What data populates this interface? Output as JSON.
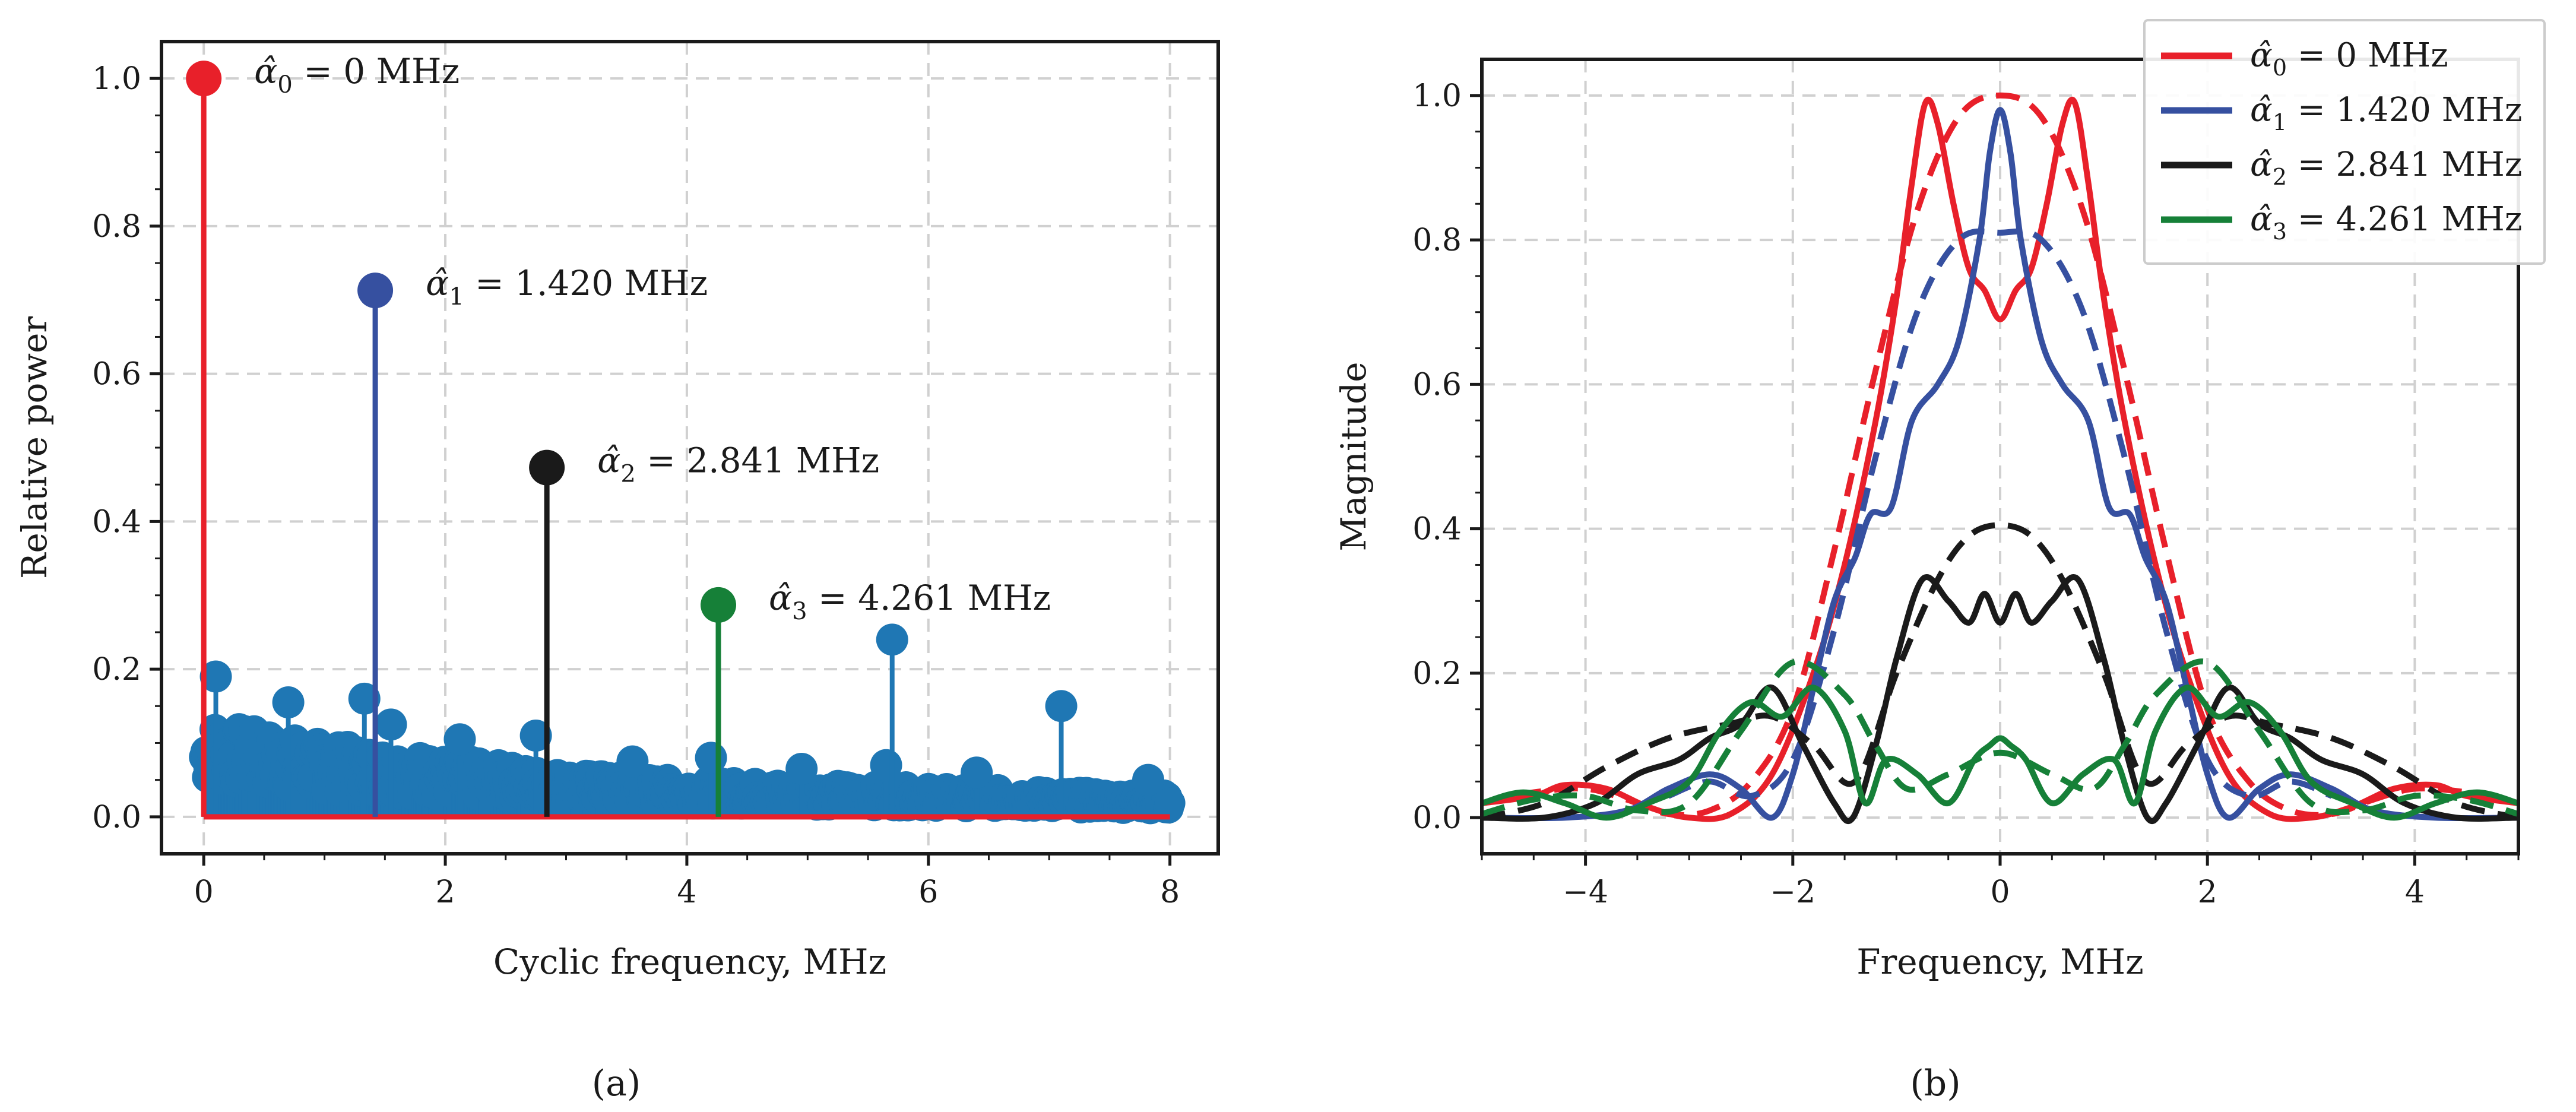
{
  "chart_data": [
    {
      "type": "scatter",
      "subtype": "stem",
      "panel_label": "(a)",
      "xlabel": "Cyclic frequency, MHz",
      "ylabel": "Relative power",
      "xlim": [
        -0.35,
        8.4
      ],
      "ylim": [
        -0.05,
        1.05
      ],
      "xticks": [
        0,
        2,
        4,
        6,
        8
      ],
      "yticks": [
        0.0,
        0.2,
        0.4,
        0.6,
        0.8,
        1.0
      ],
      "xtick_labels": [
        "0",
        "2",
        "4",
        "6",
        "8"
      ],
      "ytick_labels": [
        "0.0",
        "0.2",
        "0.4",
        "0.6",
        "0.8",
        "1.0"
      ],
      "grid": true,
      "baseline": {
        "y": 0.0,
        "x_range": [
          0,
          8
        ],
        "color": "#e8202a"
      },
      "background_stems": {
        "color": "#1f77b4",
        "x": [
          0.1,
          0.7,
          1.33,
          1.55,
          2.12,
          2.75,
          3.55,
          4.2,
          4.95,
          5.65,
          5.7,
          6.4,
          7.1,
          7.82
        ],
        "y": [
          0.19,
          0.155,
          0.16,
          0.125,
          0.105,
          0.11,
          0.075,
          0.08,
          0.065,
          0.07,
          0.24,
          0.06,
          0.15,
          0.05
        ],
        "noise_envelope": {
          "x": [
            0,
            0.05,
            0.5,
            1,
            2,
            3,
            4,
            5,
            6,
            7,
            8
          ],
          "y": [
            0.12,
            0.13,
            0.115,
            0.1,
            0.08,
            0.06,
            0.05,
            0.045,
            0.04,
            0.035,
            0.03
          ]
        }
      },
      "highlighted_stems": [
        {
          "x": 0.0,
          "y": 1.0,
          "color": "#e8202a",
          "label": "α̂",
          "sub": "0",
          "text": " = 0 MHz"
        },
        {
          "x": 1.42,
          "y": 0.713,
          "color": "#3650a0",
          "label": "α̂",
          "sub": "1",
          "text": " = 1.420 MHz"
        },
        {
          "x": 2.841,
          "y": 0.473,
          "color": "#1a1a1a",
          "label": "α̂",
          "sub": "2",
          "text": " = 2.841 MHz"
        },
        {
          "x": 4.261,
          "y": 0.287,
          "color": "#168038",
          "label": "α̂",
          "sub": "3",
          "text": " = 4.261 MHz"
        }
      ]
    },
    {
      "type": "line",
      "panel_label": "(b)",
      "xlabel": "Frequency, MHz",
      "ylabel": "Magnitude",
      "xlim": [
        -5,
        5
      ],
      "ylim": [
        -0.05,
        1.05
      ],
      "xticks": [
        -4,
        -2,
        0,
        2,
        4
      ],
      "yticks": [
        0.0,
        0.2,
        0.4,
        0.6,
        0.8,
        1.0
      ],
      "xtick_labels": [
        "−4",
        "−2",
        "0",
        "2",
        "4"
      ],
      "ytick_labels": [
        "0.0",
        "0.2",
        "0.4",
        "0.6",
        "0.8",
        "1.0"
      ],
      "grid": true,
      "legend_position": "top-right",
      "legend": [
        {
          "label": "α̂",
          "sub": "0",
          "text": " = 0 MHz",
          "color": "#e8202a"
        },
        {
          "label": "α̂",
          "sub": "1",
          "text": " = 1.420 MHz",
          "color": "#3650a0"
        },
        {
          "label": "α̂",
          "sub": "2",
          "text": " = 2.841 MHz",
          "color": "#1a1a1a"
        },
        {
          "label": "α̂",
          "sub": "3",
          "text": " = 4.261 MHz",
          "color": "#168038"
        }
      ],
      "series": [
        {
          "name": "α̂0 measured",
          "color": "#e8202a",
          "style": "solid",
          "x": [
            -5,
            -4.5,
            -4.2,
            -3.8,
            -3.4,
            -3,
            -2.6,
            -2.2,
            -1.8,
            -1.5,
            -1.2,
            -1,
            -0.85,
            -0.72,
            -0.6,
            -0.45,
            -0.3,
            -0.15,
            0,
            0.15,
            0.3,
            0.45,
            0.6,
            0.72,
            0.85,
            1,
            1.2,
            1.5,
            1.8,
            2.2,
            2.6,
            3,
            3.4,
            3.8,
            4.2,
            4.5,
            5
          ],
          "y": [
            0.02,
            0.03,
            0.045,
            0.04,
            0.015,
            0.0,
            0.005,
            0.06,
            0.2,
            0.35,
            0.55,
            0.72,
            0.88,
            0.99,
            0.96,
            0.85,
            0.76,
            0.73,
            0.69,
            0.73,
            0.76,
            0.85,
            0.96,
            0.99,
            0.88,
            0.72,
            0.55,
            0.35,
            0.2,
            0.06,
            0.005,
            0.0,
            0.015,
            0.04,
            0.045,
            0.03,
            0.02
          ]
        },
        {
          "name": "α̂0 model",
          "color": "#e8202a",
          "style": "dashed",
          "x": [
            -5,
            -4.5,
            -4,
            -3.6,
            -3.2,
            -2.8,
            -2.4,
            -2,
            -1.6,
            -1.2,
            -0.8,
            -0.4,
            0,
            0.4,
            0.8,
            1.2,
            1.6,
            2,
            2.4,
            2.8,
            3.2,
            3.6,
            4,
            4.5,
            5
          ],
          "y": [
            0.02,
            0.035,
            0.04,
            0.025,
            0.005,
            0.01,
            0.05,
            0.15,
            0.37,
            0.62,
            0.84,
            0.97,
            1.0,
            0.97,
            0.84,
            0.62,
            0.37,
            0.15,
            0.05,
            0.01,
            0.005,
            0.025,
            0.04,
            0.035,
            0.02
          ]
        },
        {
          "name": "α̂1 measured",
          "color": "#3650a0",
          "style": "solid",
          "x": [
            -5,
            -4.2,
            -3.6,
            -3.2,
            -2.8,
            -2.5,
            -2.2,
            -2.0,
            -1.8,
            -1.6,
            -1.4,
            -1.25,
            -1.05,
            -0.85,
            -0.6,
            -0.4,
            -0.2,
            -0.1,
            0,
            0.1,
            0.2,
            0.4,
            0.6,
            0.85,
            1.05,
            1.25,
            1.4,
            1.6,
            1.8,
            2.0,
            2.2,
            2.5,
            2.8,
            3.2,
            3.6,
            4.2,
            5
          ],
          "y": [
            0.0,
            0.0,
            0.01,
            0.04,
            0.06,
            0.04,
            0.0,
            0.06,
            0.18,
            0.3,
            0.36,
            0.42,
            0.43,
            0.55,
            0.6,
            0.66,
            0.8,
            0.92,
            0.98,
            0.92,
            0.8,
            0.66,
            0.6,
            0.55,
            0.43,
            0.42,
            0.36,
            0.3,
            0.18,
            0.06,
            0.0,
            0.04,
            0.06,
            0.04,
            0.01,
            0.0,
            0.0
          ]
        },
        {
          "name": "α̂1 model",
          "color": "#3650a0",
          "style": "dashed",
          "x": [
            -3.2,
            -2.8,
            -2.4,
            -2.0,
            -1.6,
            -1.2,
            -0.8,
            -0.4,
            0,
            0.4,
            0.8,
            1.2,
            1.6,
            2.0,
            2.4,
            2.8,
            3.2
          ],
          "y": [
            0.03,
            0.05,
            0.03,
            0.08,
            0.26,
            0.5,
            0.7,
            0.8,
            0.81,
            0.8,
            0.7,
            0.5,
            0.26,
            0.08,
            0.03,
            0.05,
            0.03
          ]
        },
        {
          "name": "α̂2 measured",
          "color": "#1a1a1a",
          "style": "solid",
          "x": [
            -5,
            -4.4,
            -3.9,
            -3.5,
            -3.1,
            -2.8,
            -2.5,
            -2.2,
            -1.9,
            -1.6,
            -1.42,
            -1.2,
            -1.0,
            -0.75,
            -0.5,
            -0.3,
            -0.15,
            0,
            0.15,
            0.3,
            0.5,
            0.75,
            1.0,
            1.2,
            1.42,
            1.6,
            1.9,
            2.2,
            2.5,
            2.8,
            3.1,
            3.5,
            3.9,
            4.4,
            5
          ],
          "y": [
            0.0,
            0.0,
            0.02,
            0.06,
            0.08,
            0.11,
            0.13,
            0.18,
            0.1,
            0.02,
            0.0,
            0.1,
            0.22,
            0.33,
            0.3,
            0.27,
            0.31,
            0.27,
            0.31,
            0.27,
            0.3,
            0.33,
            0.22,
            0.1,
            0.0,
            0.02,
            0.1,
            0.18,
            0.13,
            0.11,
            0.08,
            0.06,
            0.02,
            0.0,
            0.0
          ]
        },
        {
          "name": "α̂2 model",
          "color": "#1a1a1a",
          "style": "dashed",
          "x": [
            -5,
            -4.4,
            -3.8,
            -3.2,
            -2.6,
            -2.2,
            -1.8,
            -1.4,
            -1.0,
            -0.6,
            -0.3,
            0,
            0.3,
            0.6,
            1.0,
            1.4,
            1.8,
            2.2,
            2.6,
            3.2,
            3.8,
            4.4,
            5
          ],
          "y": [
            0.0,
            0.02,
            0.07,
            0.11,
            0.13,
            0.14,
            0.1,
            0.05,
            0.2,
            0.33,
            0.39,
            0.405,
            0.39,
            0.33,
            0.2,
            0.05,
            0.1,
            0.14,
            0.13,
            0.11,
            0.07,
            0.02,
            0.0
          ]
        },
        {
          "name": "α̂3 measured",
          "color": "#168038",
          "style": "solid",
          "x": [
            -5,
            -4.6,
            -4.2,
            -3.8,
            -3.4,
            -3.0,
            -2.7,
            -2.4,
            -2.1,
            -1.8,
            -1.5,
            -1.3,
            -1.1,
            -0.8,
            -0.5,
            -0.25,
            -0.1,
            0,
            0.1,
            0.25,
            0.5,
            0.8,
            1.1,
            1.3,
            1.5,
            1.8,
            2.1,
            2.4,
            2.7,
            3.0,
            3.4,
            3.8,
            4.2,
            4.6,
            5
          ],
          "y": [
            0.02,
            0.035,
            0.02,
            0.0,
            0.02,
            0.05,
            0.12,
            0.16,
            0.14,
            0.18,
            0.12,
            0.02,
            0.08,
            0.06,
            0.02,
            0.08,
            0.1,
            0.11,
            0.1,
            0.08,
            0.02,
            0.06,
            0.08,
            0.02,
            0.12,
            0.18,
            0.14,
            0.16,
            0.12,
            0.05,
            0.02,
            0.0,
            0.02,
            0.035,
            0.02
          ]
        },
        {
          "name": "α̂3 model",
          "color": "#168038",
          "style": "dashed",
          "x": [
            -5,
            -4.5,
            -4,
            -3.5,
            -3,
            -2.5,
            -2,
            -1.5,
            -1.2,
            -0.9,
            -0.5,
            0,
            0.5,
            0.9,
            1.2,
            1.5,
            2,
            2.5,
            3,
            3.5,
            4,
            4.5,
            5
          ],
          "y": [
            0.005,
            0.025,
            0.03,
            0.01,
            0.02,
            0.12,
            0.215,
            0.17,
            0.1,
            0.04,
            0.06,
            0.09,
            0.06,
            0.04,
            0.1,
            0.17,
            0.215,
            0.12,
            0.02,
            0.01,
            0.03,
            0.025,
            0.005
          ]
        }
      ]
    }
  ]
}
